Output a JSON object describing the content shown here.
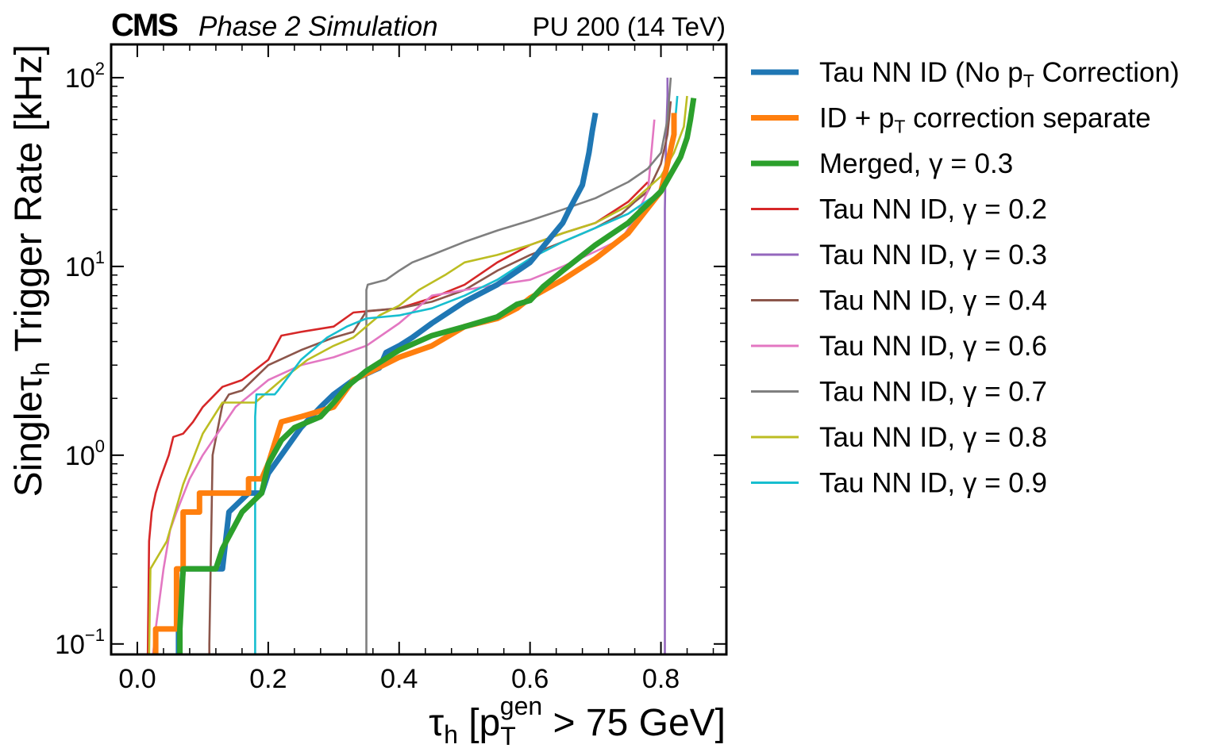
{
  "header": {
    "experiment": "CMS",
    "subtitle": "Phase 2 Simulation",
    "condition": "PU 200 (14 TeV)"
  },
  "chart_data": {
    "type": "line",
    "title": "",
    "xlabel": {
      "base": "τ",
      "sub": "h",
      "rest": " [p",
      "sub2": "T",
      "sup2": "gen",
      "tail": " > 75 GeV]"
    },
    "ylabel": {
      "pre": "Single",
      "base": "τ",
      "sub": "h",
      "tail": " Trigger Rate [kHz]"
    },
    "yscale": "log",
    "xlim": [
      -0.04,
      0.9
    ],
    "ylim": [
      0.088,
      150
    ],
    "xticks": [
      0.0,
      0.2,
      0.4,
      0.6,
      0.8
    ],
    "xtick_labels": [
      "0.0",
      "0.2",
      "0.4",
      "0.6",
      "0.8"
    ],
    "yticks": [
      0.1,
      1,
      10,
      100
    ],
    "ytick_labels": [
      {
        "base": "10",
        "exp": "−1"
      },
      {
        "base": "10",
        "exp": "0"
      },
      {
        "base": "10",
        "exp": "1"
      },
      {
        "base": "10",
        "exp": "2"
      }
    ],
    "grid": false,
    "legend_position": "outside-right",
    "series": [
      {
        "name": "Tau NN ID (No p",
        "name_sub": "T",
        "name_tail": " Correction)",
        "color": "#1f77b4",
        "thick": true,
        "x": [
          0.063,
          0.063,
          0.07,
          0.13,
          0.14,
          0.17,
          0.19,
          0.2,
          0.22,
          0.25,
          0.28,
          0.3,
          0.33,
          0.36,
          0.37,
          0.38,
          0.4,
          0.42,
          0.45,
          0.5,
          0.55,
          0.6,
          0.65,
          0.66,
          0.68,
          0.69,
          0.695,
          0.7
        ],
        "y": [
          0.088,
          0.12,
          0.25,
          0.25,
          0.5,
          0.63,
          0.63,
          0.8,
          1.0,
          1.4,
          1.8,
          2.1,
          2.5,
          2.8,
          2.9,
          3.5,
          3.8,
          4.2,
          5.0,
          6.5,
          8.0,
          10.5,
          17,
          20,
          27,
          40,
          52,
          65
        ]
      },
      {
        "name": "ID + p",
        "name_sub": "T",
        "name_tail": " correction separate",
        "color": "#ff7f0e",
        "thick": true,
        "x": [
          0.028,
          0.028,
          0.06,
          0.06,
          0.07,
          0.07,
          0.095,
          0.095,
          0.17,
          0.17,
          0.19,
          0.2,
          0.22,
          0.25,
          0.3,
          0.33,
          0.4,
          0.45,
          0.5,
          0.55,
          0.58,
          0.6,
          0.65,
          0.7,
          0.75,
          0.8,
          0.81,
          0.82,
          0.82
        ],
        "y": [
          0.088,
          0.12,
          0.12,
          0.25,
          0.25,
          0.5,
          0.5,
          0.63,
          0.63,
          0.75,
          0.75,
          0.9,
          1.5,
          1.6,
          1.8,
          2.5,
          3.3,
          3.8,
          4.8,
          5.3,
          6.0,
          6.8,
          8.5,
          11,
          15,
          25,
          35,
          50,
          65
        ]
      },
      {
        "name": "Merged, γ = 0.3",
        "color": "#2ca02c",
        "thick": true,
        "x": [
          0.065,
          0.065,
          0.07,
          0.12,
          0.13,
          0.16,
          0.19,
          0.2,
          0.22,
          0.24,
          0.28,
          0.3,
          0.32,
          0.35,
          0.4,
          0.45,
          0.5,
          0.55,
          0.58,
          0.6,
          0.62,
          0.65,
          0.7,
          0.75,
          0.8,
          0.83,
          0.84,
          0.845,
          0.85
        ],
        "y": [
          0.088,
          0.12,
          0.25,
          0.25,
          0.32,
          0.5,
          0.63,
          0.9,
          1.2,
          1.4,
          1.6,
          1.9,
          2.3,
          2.8,
          3.6,
          4.3,
          4.8,
          5.4,
          6.3,
          6.6,
          7.8,
          9.5,
          13,
          17,
          25,
          38,
          48,
          60,
          78
        ]
      },
      {
        "name": "Tau NN ID, γ = 0.2",
        "color": "#d62728",
        "thick": false,
        "x": [
          0.016,
          0.018,
          0.022,
          0.028,
          0.035,
          0.048,
          0.055,
          0.07,
          0.085,
          0.1,
          0.13,
          0.16,
          0.2,
          0.22,
          0.25,
          0.3,
          0.33,
          0.4,
          0.45,
          0.5,
          0.55,
          0.6,
          0.65,
          0.7,
          0.75,
          0.78
        ],
        "y": [
          0.088,
          0.35,
          0.5,
          0.63,
          0.75,
          1.0,
          1.25,
          1.3,
          1.5,
          1.8,
          2.3,
          2.5,
          3.2,
          4.3,
          4.5,
          4.8,
          5.7,
          6.0,
          6.8,
          8.0,
          10.5,
          13,
          15,
          17,
          22,
          28
        ]
      },
      {
        "name": "Tau NN ID, γ = 0.3",
        "color": "#9467bd",
        "thick": false,
        "x": [
          0.806,
          0.806,
          0.808,
          0.81,
          0.81
        ],
        "y": [
          0.088,
          20,
          50,
          80,
          100
        ]
      },
      {
        "name": "Tau NN ID, γ = 0.4",
        "color": "#8c564b",
        "thick": false,
        "x": [
          0.11,
          0.11,
          0.115,
          0.13,
          0.14,
          0.16,
          0.2,
          0.25,
          0.3,
          0.33,
          0.35,
          0.4,
          0.45,
          0.5,
          0.55,
          0.6,
          0.65,
          0.7,
          0.74,
          0.76,
          0.78,
          0.8,
          0.81,
          0.815
        ],
        "y": [
          0.088,
          0.1,
          1.0,
          1.85,
          2.1,
          2.2,
          3.0,
          3.6,
          4.2,
          4.5,
          5.8,
          6.0,
          6.5,
          7.5,
          9.5,
          11.5,
          13.5,
          16,
          19,
          22,
          25,
          35,
          50,
          75
        ]
      },
      {
        "name": "Tau NN ID, γ = 0.6",
        "color": "#e377c2",
        "thick": false,
        "x": [
          0.024,
          0.028,
          0.04,
          0.05,
          0.06,
          0.08,
          0.1,
          0.15,
          0.2,
          0.25,
          0.3,
          0.35,
          0.4,
          0.45,
          0.5,
          0.55,
          0.6,
          0.65,
          0.7,
          0.74,
          0.76,
          0.78,
          0.79
        ],
        "y": [
          0.088,
          0.12,
          0.25,
          0.4,
          0.5,
          0.75,
          1.0,
          1.8,
          2.5,
          3.0,
          3.3,
          3.8,
          5.0,
          7.0,
          7.5,
          8.0,
          8.5,
          10,
          12,
          14,
          18,
          25,
          60
        ]
      },
      {
        "name": "Tau NN ID, γ = 0.7",
        "color": "#7f7f7f",
        "thick": false,
        "x": [
          0.35,
          0.35,
          0.352,
          0.38,
          0.4,
          0.42,
          0.45,
          0.5,
          0.55,
          0.6,
          0.65,
          0.7,
          0.75,
          0.78,
          0.8,
          0.81,
          0.815
        ],
        "y": [
          0.088,
          7.5,
          8.0,
          8.5,
          9.5,
          10.5,
          11.5,
          13.5,
          15.5,
          17.5,
          20,
          23,
          28,
          33,
          40,
          60,
          100
        ]
      },
      {
        "name": "Tau NN ID, γ = 0.8",
        "color": "#bcbd22",
        "thick": false,
        "x": [
          0.018,
          0.02,
          0.045,
          0.07,
          0.1,
          0.13,
          0.18,
          0.22,
          0.26,
          0.3,
          0.33,
          0.37,
          0.4,
          0.43,
          0.47,
          0.5,
          0.55,
          0.6,
          0.65,
          0.7,
          0.75,
          0.8,
          0.82,
          0.835,
          0.84
        ],
        "y": [
          0.088,
          0.25,
          0.35,
          0.7,
          1.3,
          1.9,
          1.9,
          2.5,
          3.2,
          3.8,
          4.2,
          5.5,
          6.2,
          7.5,
          9.0,
          10.5,
          11.5,
          13,
          15,
          17,
          21,
          30,
          40,
          55,
          80
        ]
      },
      {
        "name": "Tau NN ID, γ = 0.9",
        "color": "#17becf",
        "thick": false,
        "x": [
          0.18,
          0.18,
          0.182,
          0.21,
          0.215,
          0.25,
          0.29,
          0.32,
          0.35,
          0.4,
          0.45,
          0.5,
          0.55,
          0.6,
          0.65,
          0.7,
          0.75,
          0.8,
          0.81,
          0.82,
          0.825
        ],
        "y": [
          0.088,
          1.6,
          2.1,
          2.1,
          2.2,
          3.2,
          4.2,
          4.8,
          5.3,
          5.5,
          6.0,
          7.0,
          8.5,
          11,
          13.5,
          16,
          19,
          25,
          35,
          50,
          80
        ]
      }
    ]
  }
}
